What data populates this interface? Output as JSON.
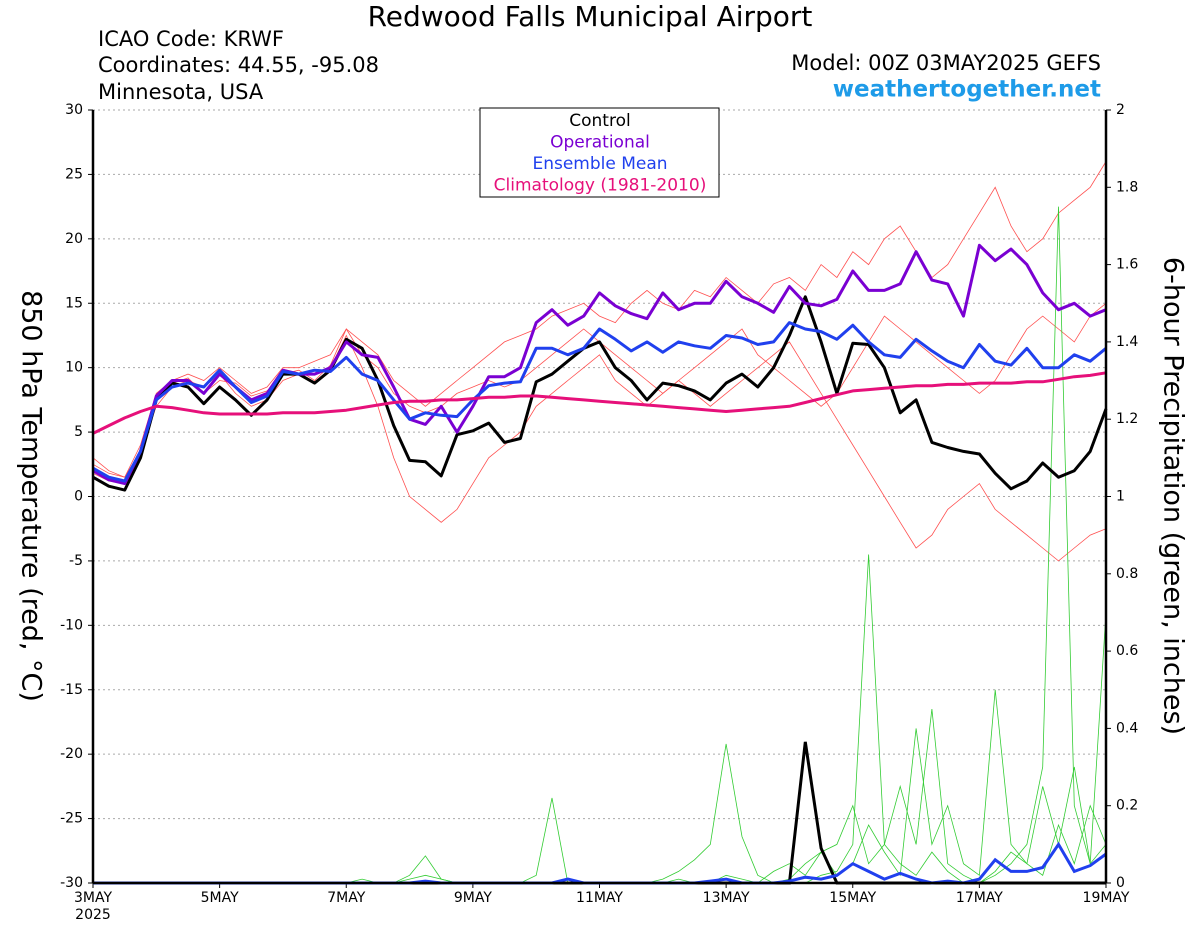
{
  "chart_data": {
    "type": "line",
    "title": "Redwood Falls Municipal Airport",
    "info_lines": [
      "ICAO Code: KRWF",
      "Coordinates: 44.55, -95.08",
      "Minnesota, USA"
    ],
    "model": "Model: 00Z 03MAY2025 GEFS",
    "source": "weathertogether.net",
    "y_label": "850 hPa Temperature (red, °C)",
    "y2_label": "6-hour Precipitation (green, inches)",
    "year_label": "2025",
    "categories": [
      "3MAY",
      null,
      null,
      null,
      null,
      null,
      null,
      null,
      "5MAY",
      null,
      null,
      null,
      null,
      null,
      null,
      null,
      "7MAY",
      null,
      null,
      null,
      null,
      null,
      null,
      null,
      "9MAY",
      null,
      null,
      null,
      null,
      null,
      null,
      null,
      "11MAY",
      null,
      null,
      null,
      null,
      null,
      null,
      null,
      "13MAY",
      null,
      null,
      null,
      null,
      null,
      null,
      null,
      "15MAY",
      null,
      null,
      null,
      null,
      null,
      null,
      null,
      "17MAY",
      null,
      null,
      null,
      null,
      null,
      null,
      null,
      "19MAY"
    ],
    "ylim": [
      -30,
      30
    ],
    "yticks": [
      -30,
      -25,
      -20,
      -15,
      -10,
      -5,
      0,
      5,
      10,
      15,
      20,
      25,
      30
    ],
    "y2lim": [
      0,
      2
    ],
    "y2ticks": [
      0,
      0.2,
      0.4,
      0.6,
      0.8,
      1,
      1.2,
      1.4,
      1.6,
      1.8,
      2
    ],
    "grid": true,
    "members": [
      {
        "color": "#ff5050",
        "values": [
          2.5,
          1.8,
          1.5,
          4,
          8,
          9,
          9.5,
          9,
          10,
          9,
          8,
          8.5,
          10,
          10,
          10.5,
          11,
          13,
          12,
          11,
          9,
          8,
          7,
          8,
          9,
          10,
          11,
          12,
          12.5,
          13,
          14,
          14.5,
          15,
          14,
          13.5,
          15,
          16,
          15,
          14.5,
          16,
          15.5,
          17,
          16,
          15,
          16.5,
          17,
          16,
          18,
          17,
          19,
          18,
          20,
          21,
          19,
          17,
          18,
          20,
          22,
          24,
          21,
          19,
          20,
          22,
          23,
          24,
          26
        ]
      },
      {
        "color": "#ff5050",
        "values": [
          3,
          2,
          1.5,
          3.5,
          7,
          8.5,
          9,
          8.5,
          9.5,
          8,
          7,
          7.5,
          9,
          9.5,
          9.5,
          10,
          12.5,
          10,
          7,
          3,
          0,
          -1,
          -2,
          -1,
          1,
          3,
          4,
          5,
          7,
          8,
          9,
          10,
          11,
          9,
          8,
          7,
          8,
          9,
          8,
          7,
          8,
          9,
          10,
          11,
          12,
          10,
          8,
          6,
          4,
          2,
          0,
          -2,
          -4,
          -3,
          -1,
          0,
          1,
          -1,
          -2,
          -3,
          -4,
          -5,
          -4,
          -3,
          -2.5
        ]
      },
      {
        "color": "#ff5050",
        "values": [
          1.8,
          1.2,
          1,
          3,
          7.5,
          8.8,
          9.2,
          8,
          9,
          8.8,
          7.8,
          8.2,
          9.5,
          9.8,
          9,
          10.2,
          13,
          11,
          10,
          8,
          7,
          6.5,
          7,
          8,
          8.5,
          9,
          8.5,
          9,
          10,
          11,
          12,
          13,
          12,
          11,
          10,
          9,
          8,
          9,
          10,
          11,
          12,
          13,
          11,
          10,
          9,
          8,
          7,
          8,
          10,
          12,
          14,
          13,
          12,
          11,
          10,
          9,
          8,
          9,
          11,
          13,
          14,
          13,
          12,
          14,
          15
        ]
      },
      {
        "color": "#33cc33",
        "axis": "y2",
        "values": [
          0,
          0,
          0,
          0,
          0,
          0,
          0,
          0,
          0,
          0,
          0,
          0,
          0,
          0,
          0,
          0,
          0,
          0,
          0,
          0,
          0.01,
          0.02,
          0.01,
          0,
          0,
          0,
          0,
          0,
          0.02,
          0.22,
          0,
          0,
          0,
          0,
          0,
          0,
          0,
          0,
          0,
          0,
          0,
          0,
          0,
          0,
          0,
          0,
          0.02,
          0.03,
          0.1,
          0.85,
          0.1,
          0.05,
          0.02,
          0.08,
          0.03,
          0,
          0,
          0.02,
          0.05,
          0.1,
          0.3,
          1.75,
          0.2,
          0.05,
          0.1
        ]
      },
      {
        "color": "#33cc33",
        "axis": "y2",
        "values": [
          0,
          0,
          0,
          0,
          0,
          0,
          0,
          0,
          0,
          0,
          0,
          0,
          0,
          0,
          0,
          0,
          0,
          0.01,
          0,
          0,
          0.02,
          0.07,
          0.01,
          0,
          0,
          0,
          0,
          0,
          0,
          0,
          0,
          0,
          0,
          0,
          0,
          0,
          0.01,
          0.03,
          0.06,
          0.1,
          0.36,
          0.12,
          0.02,
          0,
          0.01,
          0.05,
          0.08,
          0.02,
          0.05,
          0.15,
          0.08,
          0.02,
          0.4,
          0.1,
          0.2,
          0.05,
          0.02,
          0.5,
          0.1,
          0.05,
          0.02,
          0.15,
          0.05,
          0.2,
          0.1
        ]
      },
      {
        "color": "#33cc33",
        "axis": "y2",
        "values": [
          0,
          0,
          0,
          0,
          0,
          0,
          0,
          0,
          0,
          0,
          0,
          0,
          0,
          0,
          0,
          0,
          0,
          0,
          0,
          0,
          0,
          0,
          0,
          0,
          0,
          0,
          0,
          0,
          0,
          0,
          0,
          0,
          0,
          0,
          0,
          0,
          0,
          0.01,
          0,
          0,
          0.02,
          0.01,
          0,
          0.03,
          0.05,
          0.02,
          0.08,
          0.1,
          0.2,
          0.05,
          0.1,
          0.25,
          0.1,
          0.45,
          0.05,
          0.02,
          0,
          0.03,
          0.08,
          0.05,
          0.25,
          0.1,
          0.3,
          0.05,
          0.7
        ]
      }
    ],
    "series": [
      {
        "name": "Control",
        "color": "#000000",
        "values": [
          1.5,
          0.8,
          0.5,
          3,
          7.5,
          8.8,
          8.5,
          7.2,
          8.5,
          7.5,
          6.3,
          7.5,
          9.5,
          9.5,
          8.8,
          9.8,
          12.2,
          11.5,
          9,
          5.5,
          2.8,
          2.7,
          1.6,
          4.8,
          5.1,
          5.7,
          4.2,
          4.5,
          8.9,
          9.5,
          10.5,
          11.5,
          12,
          10,
          9,
          7.5,
          8.8,
          8.6,
          8.2,
          7.5,
          8.8,
          9.5,
          8.5,
          10,
          12.5,
          15.5,
          12,
          8,
          11.9,
          11.8,
          10,
          6.5,
          7.5,
          4.2,
          3.8,
          3.5,
          3.3,
          1.8,
          0.6,
          1.2,
          2.6,
          1.5,
          2,
          3.5,
          6.8
        ],
        "y2_values": [
          0,
          0,
          0,
          0,
          0,
          0,
          0,
          0,
          0,
          0,
          0,
          0,
          0,
          0,
          0,
          0,
          0,
          0,
          0,
          0,
          0,
          0,
          0,
          0,
          0,
          0,
          0,
          0,
          0,
          0,
          0,
          0,
          0,
          0,
          0,
          0,
          0,
          0,
          0,
          0,
          0,
          0,
          0,
          0,
          0,
          0.365,
          0.09,
          0,
          0,
          0,
          0,
          0,
          0,
          0,
          0,
          0,
          0,
          0,
          0,
          0,
          0,
          0,
          0,
          0,
          0
        ]
      },
      {
        "name": "Operational",
        "color": "#7a00d2",
        "values": [
          2,
          1.3,
          1,
          3.5,
          7.8,
          9,
          9,
          8,
          9.5,
          8.5,
          7.5,
          8,
          9.8,
          9.5,
          9.5,
          10,
          12,
          11,
          10.8,
          8.5,
          6,
          5.6,
          7,
          5,
          7,
          9.3,
          9.3,
          10,
          13.5,
          14.5,
          13.3,
          14,
          15.8,
          14.8,
          14.2,
          13.8,
          15.8,
          14.5,
          15,
          15,
          16.7,
          15.5,
          15,
          14.3,
          16.3,
          15,
          14.8,
          15.3,
          17.5,
          16,
          16,
          16.5,
          19,
          16.8,
          16.5,
          14,
          19.5,
          18.3,
          19.2,
          18,
          15.8,
          14.5,
          15,
          14,
          14.5
        ]
      },
      {
        "name": "Ensemble Mean",
        "color": "#2040ee",
        "values": [
          2.2,
          1.5,
          1.2,
          3.5,
          7.5,
          8.5,
          8.8,
          8.5,
          9.8,
          8.5,
          7.3,
          7.8,
          9.7,
          9.5,
          9.8,
          9.7,
          10.8,
          9.5,
          9,
          7.5,
          6,
          6.5,
          6.3,
          6.2,
          7.5,
          8.6,
          8.8,
          8.9,
          11.5,
          11.5,
          11,
          11.5,
          13,
          12.2,
          11.3,
          12,
          11.2,
          12,
          11.7,
          11.5,
          12.5,
          12.3,
          11.8,
          12,
          13.5,
          13,
          12.8,
          12.2,
          13.3,
          12,
          11,
          10.8,
          12.2,
          11.3,
          10.5,
          10,
          11.8,
          10.5,
          10.2,
          11.5,
          10,
          10,
          11,
          10.5,
          11.5
        ],
        "y2_values": [
          0,
          0,
          0,
          0,
          0,
          0,
          0,
          0,
          0,
          0,
          0,
          0,
          0,
          0,
          0,
          0,
          0,
          0,
          0,
          0,
          0,
          0.005,
          0,
          0,
          0,
          0,
          0,
          0,
          0,
          0,
          0.01,
          0,
          0,
          0,
          0,
          0,
          0,
          0,
          0,
          0.005,
          0.01,
          0,
          0,
          0,
          0.005,
          0.015,
          0.01,
          0.02,
          0.05,
          0.03,
          0.01,
          0.025,
          0.01,
          0,
          0.005,
          0,
          0.01,
          0.06,
          0.03,
          0.03,
          0.04,
          0.1,
          0.03,
          0.045,
          0.075
        ]
      },
      {
        "name": "Climatology (1981-2010)",
        "color": "#e6107a",
        "values": [
          4.9,
          5.5,
          6.1,
          6.6,
          7,
          6.9,
          6.7,
          6.5,
          6.4,
          6.4,
          6.4,
          6.4,
          6.5,
          6.5,
          6.5,
          6.6,
          6.7,
          6.9,
          7.1,
          7.3,
          7.4,
          7.4,
          7.5,
          7.5,
          7.6,
          7.7,
          7.7,
          7.8,
          7.8,
          7.7,
          7.6,
          7.5,
          7.4,
          7.3,
          7.2,
          7.1,
          7,
          6.9,
          6.8,
          6.7,
          6.6,
          6.7,
          6.8,
          6.9,
          7,
          7.3,
          7.6,
          7.9,
          8.2,
          8.3,
          8.4,
          8.5,
          8.6,
          8.6,
          8.7,
          8.7,
          8.8,
          8.8,
          8.8,
          8.9,
          8.9,
          9.1,
          9.3,
          9.4,
          9.6
        ]
      }
    ]
  }
}
